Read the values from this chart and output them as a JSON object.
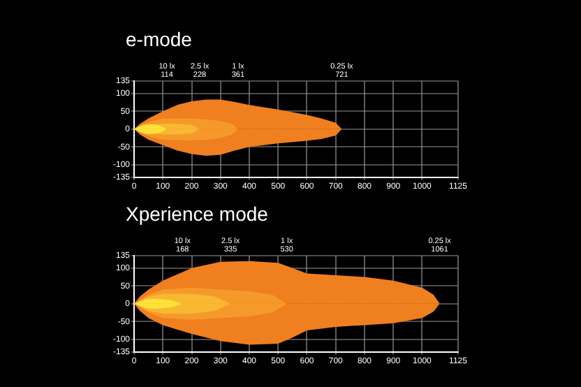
{
  "chart_data": [
    {
      "type": "area",
      "title": "e-mode",
      "xlim": [
        0,
        1125
      ],
      "ylim": [
        -135,
        135
      ],
      "xticks": [
        0,
        100,
        200,
        300,
        400,
        500,
        600,
        700,
        800,
        900,
        1000,
        1125
      ],
      "yticks": [
        135,
        100,
        50,
        0,
        -50,
        -100,
        -135
      ],
      "grid": true,
      "series": [
        {
          "color": "#f07f1f",
          "x": [
            0,
            20,
            50,
            100,
            150,
            200,
            250,
            300,
            350,
            400,
            500,
            600,
            650,
            700,
            721
          ],
          "values": [
            0,
            15,
            30,
            50,
            68,
            78,
            83,
            83,
            76,
            68,
            55,
            40,
            30,
            18,
            0
          ]
        },
        {
          "color": "#f07f1f",
          "x": [
            0,
            20,
            50,
            100,
            150,
            200,
            250,
            300,
            350,
            400,
            500,
            600,
            650,
            700,
            721
          ],
          "values": [
            0,
            -15,
            -30,
            -45,
            -60,
            -70,
            -75,
            -72,
            -60,
            -50,
            -40,
            -33,
            -28,
            -18,
            0
          ]
        },
        {
          "color": "#f59a2a",
          "x": [
            0,
            50,
            100,
            200,
            250,
            300,
            340,
            361
          ],
          "values": [
            0,
            20,
            30,
            30,
            27,
            22,
            15,
            0
          ]
        },
        {
          "color": "#f59a2a",
          "x": [
            0,
            50,
            100,
            200,
            250,
            300,
            340,
            361
          ],
          "values": [
            0,
            -20,
            -30,
            -32,
            -30,
            -25,
            -15,
            0
          ]
        },
        {
          "color": "#f8b832",
          "x": [
            0,
            50,
            100,
            150,
            200,
            228
          ],
          "values": [
            0,
            12,
            15,
            15,
            12,
            0
          ]
        },
        {
          "color": "#f8b832",
          "x": [
            0,
            50,
            100,
            150,
            200,
            228
          ],
          "values": [
            0,
            -12,
            -15,
            -15,
            -12,
            0
          ]
        },
        {
          "color": "#fde23a",
          "x": [
            0,
            30,
            60,
            90,
            114
          ],
          "values": [
            0,
            12,
            14,
            10,
            0
          ]
        },
        {
          "color": "#fde23a",
          "x": [
            0,
            30,
            60,
            90,
            114
          ],
          "values": [
            0,
            -12,
            -14,
            -10,
            0
          ]
        }
      ],
      "annotations": [
        "10 lx\n114",
        "2.5 lx\n228",
        "1 lx\n361",
        "0.25 lx\n721"
      ]
    },
    {
      "type": "area",
      "title": "Xperience mode",
      "xlim": [
        0,
        1125
      ],
      "ylim": [
        -135,
        135
      ],
      "xticks": [
        0,
        100,
        200,
        300,
        400,
        500,
        600,
        700,
        800,
        900,
        1000,
        1125
      ],
      "yticks": [
        135,
        100,
        50,
        0,
        -50,
        -100,
        -135
      ],
      "grid": true,
      "series": [
        {
          "color": "#f07f1f",
          "x": [
            0,
            20,
            50,
            100,
            200,
            300,
            400,
            500,
            550,
            600,
            700,
            800,
            900,
            1000,
            1040,
            1061
          ],
          "values": [
            0,
            20,
            40,
            65,
            100,
            118,
            120,
            115,
            100,
            85,
            80,
            75,
            65,
            45,
            25,
            0
          ]
        },
        {
          "color": "#f07f1f",
          "x": [
            0,
            20,
            50,
            100,
            200,
            300,
            400,
            500,
            550,
            600,
            700,
            800,
            900,
            1000,
            1040,
            1061
          ],
          "values": [
            0,
            -20,
            -40,
            -60,
            -85,
            -105,
            -115,
            -112,
            -95,
            -75,
            -65,
            -60,
            -55,
            -40,
            -22,
            0
          ]
        },
        {
          "color": "#f59a2a",
          "x": [
            0,
            50,
            100,
            200,
            300,
            400,
            480,
            530
          ],
          "values": [
            0,
            25,
            40,
            45,
            40,
            35,
            25,
            0
          ]
        },
        {
          "color": "#f59a2a",
          "x": [
            0,
            50,
            100,
            200,
            300,
            400,
            480,
            530
          ],
          "values": [
            0,
            -25,
            -40,
            -45,
            -40,
            -35,
            -25,
            0
          ]
        },
        {
          "color": "#f8b832",
          "x": [
            0,
            50,
            100,
            200,
            280,
            335
          ],
          "values": [
            0,
            20,
            28,
            28,
            20,
            0
          ]
        },
        {
          "color": "#f8b832",
          "x": [
            0,
            50,
            100,
            200,
            280,
            335
          ],
          "values": [
            0,
            -20,
            -28,
            -28,
            -20,
            0
          ]
        },
        {
          "color": "#fde23a",
          "x": [
            0,
            40,
            80,
            130,
            168
          ],
          "values": [
            0,
            12,
            14,
            10,
            0
          ]
        },
        {
          "color": "#fde23a",
          "x": [
            0,
            40,
            80,
            130,
            168
          ],
          "values": [
            0,
            -12,
            -14,
            -10,
            0
          ]
        }
      ],
      "annotations": [
        "10 lx\n168",
        "2.5 lx\n335",
        "1 lx\n530",
        "0.25 lx\n1061"
      ]
    }
  ]
}
